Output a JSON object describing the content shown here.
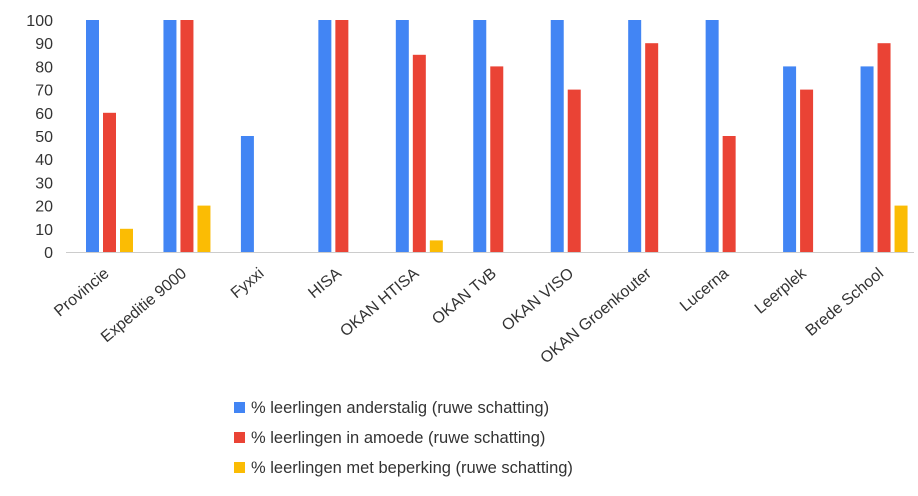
{
  "chart_data": {
    "type": "bar",
    "title": "",
    "xlabel": "",
    "ylabel": "",
    "ylim": [
      0,
      100
    ],
    "yticks": [
      0,
      10,
      20,
      30,
      40,
      50,
      60,
      70,
      80,
      90,
      100
    ],
    "grid": false,
    "legend_position": "bottom",
    "categories": [
      "Provincie",
      "Expeditie 9000",
      "Fyxxi",
      "HISA",
      "OKAN HTISA",
      "OKAN TvB",
      "OKAN VISO",
      "OKAN Groenkouter",
      "Lucerna",
      "Leerplek",
      "Brede School"
    ],
    "series": [
      {
        "name": "% leerlingen anderstalig (ruwe schatting)",
        "color": "#4285f4",
        "values": [
          100,
          100,
          50,
          100,
          100,
          100,
          100,
          100,
          100,
          80,
          80
        ]
      },
      {
        "name": "% leerlingen in amoede (ruwe schatting)",
        "color": "#ea4335",
        "values": [
          60,
          100,
          null,
          100,
          85,
          80,
          70,
          90,
          50,
          70,
          90
        ]
      },
      {
        "name": "% leerlingen met beperking (ruwe schatting)",
        "color": "#fbbc04",
        "values": [
          10,
          20,
          null,
          null,
          5,
          null,
          null,
          null,
          null,
          null,
          20
        ]
      }
    ]
  }
}
